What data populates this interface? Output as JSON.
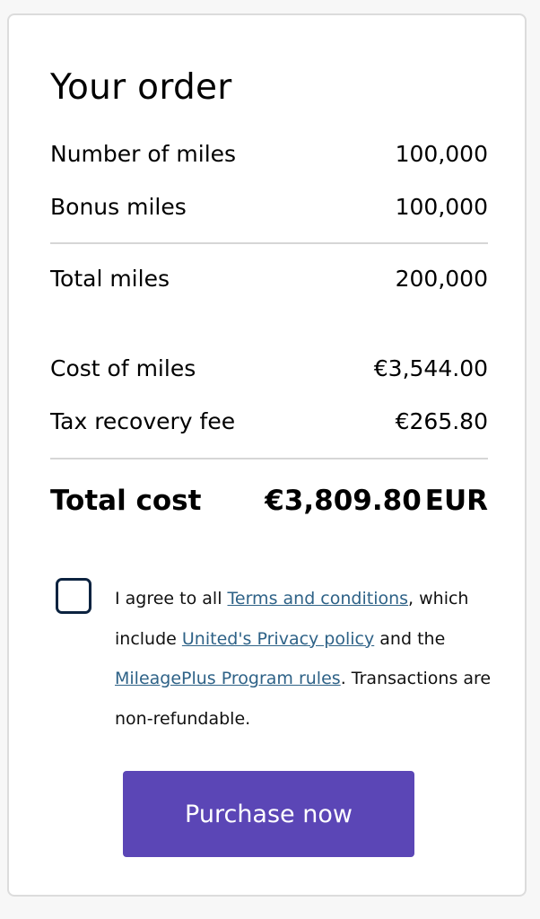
{
  "order": {
    "title": "Your order",
    "rows": [
      {
        "label": "Number of miles",
        "value": "100,000"
      },
      {
        "label": "Bonus miles",
        "value": "100,000"
      },
      {
        "label": "Total miles",
        "value": "200,000"
      },
      {
        "label": "Cost of miles",
        "value": "€3,544.00"
      },
      {
        "label": "Tax recovery fee",
        "value": "€265.80"
      }
    ],
    "total": {
      "label": "Total cost",
      "value": "€3,809.80",
      "currency": "EUR"
    }
  },
  "agreement": {
    "checked": false,
    "text1": "I agree to all ",
    "link1": "Terms and conditions",
    "text2": ", which include ",
    "link2": "United's Privacy policy",
    "text3": " and the ",
    "link3": "MileagePlus Program rules",
    "text4": ". Transactions are non-refundable."
  },
  "purchase_button": "Purchase now",
  "colors": {
    "button": "#5b46b6",
    "link": "#2e6287",
    "checkbox_border": "#0c2340"
  }
}
